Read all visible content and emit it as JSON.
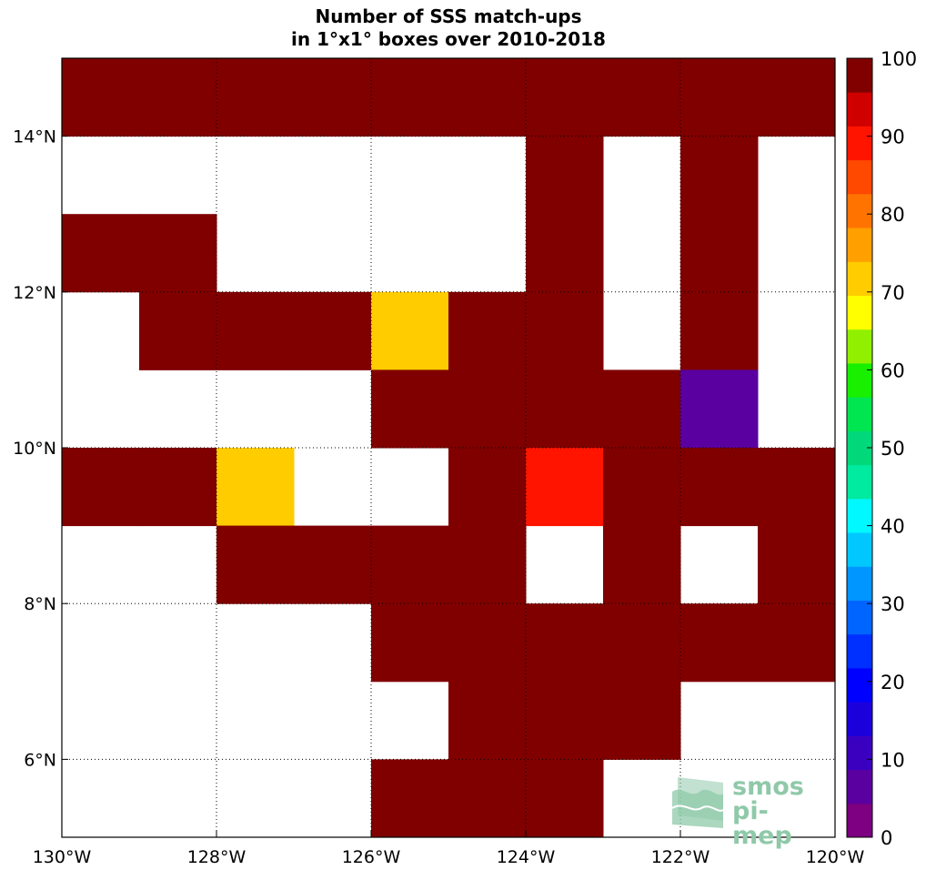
{
  "chart_data": {
    "type": "heatmap",
    "title": "Number of SSS match-ups",
    "subtitle": "in 1°x1° boxes over 2010-2018",
    "x_range_lon": [
      -130,
      -120
    ],
    "y_range_lat": [
      5,
      15
    ],
    "x_ticks": [
      {
        "value": -130,
        "label": "130°W"
      },
      {
        "value": -128,
        "label": "128°W"
      },
      {
        "value": -126,
        "label": "126°W"
      },
      {
        "value": -124,
        "label": "124°W"
      },
      {
        "value": -122,
        "label": "122°W"
      },
      {
        "value": -120,
        "label": "120°W"
      }
    ],
    "y_ticks": [
      {
        "value": 6,
        "label": "6°N"
      },
      {
        "value": 8,
        "label": "8°N"
      },
      {
        "value": 10,
        "label": "10°N"
      },
      {
        "value": 12,
        "label": "12°N"
      },
      {
        "value": 14,
        "label": "14°N"
      }
    ],
    "grid": true,
    "colorbar": {
      "range": [
        0,
        100
      ],
      "ticks": [
        0,
        10,
        20,
        30,
        40,
        50,
        60,
        70,
        80,
        90,
        100
      ],
      "colors": [
        "#7c0080",
        "#5a00a0",
        "#3a00c0",
        "#1c00dc",
        "#0000ff",
        "#0030ff",
        "#0064ff",
        "#0096ff",
        "#00c8ff",
        "#00f8ff",
        "#00eaa0",
        "#00d87a",
        "#00e650",
        "#18f000",
        "#90f000",
        "#ffff00",
        "#ffcc00",
        "#ffa000",
        "#ff7400",
        "#ff4800",
        "#ff1400",
        "#d00000",
        "#800000"
      ]
    },
    "lat_rows": [
      14,
      13,
      12,
      11,
      10,
      9,
      8,
      7,
      6,
      5
    ],
    "lon_cols": [
      -130,
      -129,
      -128,
      -127,
      -126,
      -125,
      -124,
      -123,
      -122,
      -121
    ],
    "cell_values": [
      [
        100,
        100,
        100,
        100,
        100,
        100,
        100,
        100,
        100,
        100
      ],
      [
        null,
        null,
        null,
        null,
        null,
        null,
        100,
        null,
        100,
        null
      ],
      [
        100,
        100,
        null,
        null,
        null,
        null,
        100,
        null,
        100,
        null
      ],
      [
        null,
        100,
        100,
        100,
        70,
        100,
        100,
        null,
        100,
        null
      ],
      [
        null,
        null,
        null,
        null,
        100,
        100,
        100,
        100,
        8,
        null
      ],
      [
        100,
        100,
        70,
        null,
        null,
        100,
        90,
        100,
        100,
        100
      ],
      [
        null,
        null,
        100,
        100,
        100,
        100,
        null,
        100,
        null,
        100
      ],
      [
        null,
        null,
        null,
        null,
        100,
        100,
        100,
        100,
        100,
        100
      ],
      [
        null,
        null,
        null,
        null,
        null,
        100,
        100,
        100,
        null,
        null
      ],
      [
        null,
        null,
        null,
        null,
        100,
        100,
        100,
        null,
        null,
        null
      ]
    ]
  },
  "logo": {
    "line1": "smos",
    "line2": "pi-mep",
    "color": "#8fc9a9"
  }
}
